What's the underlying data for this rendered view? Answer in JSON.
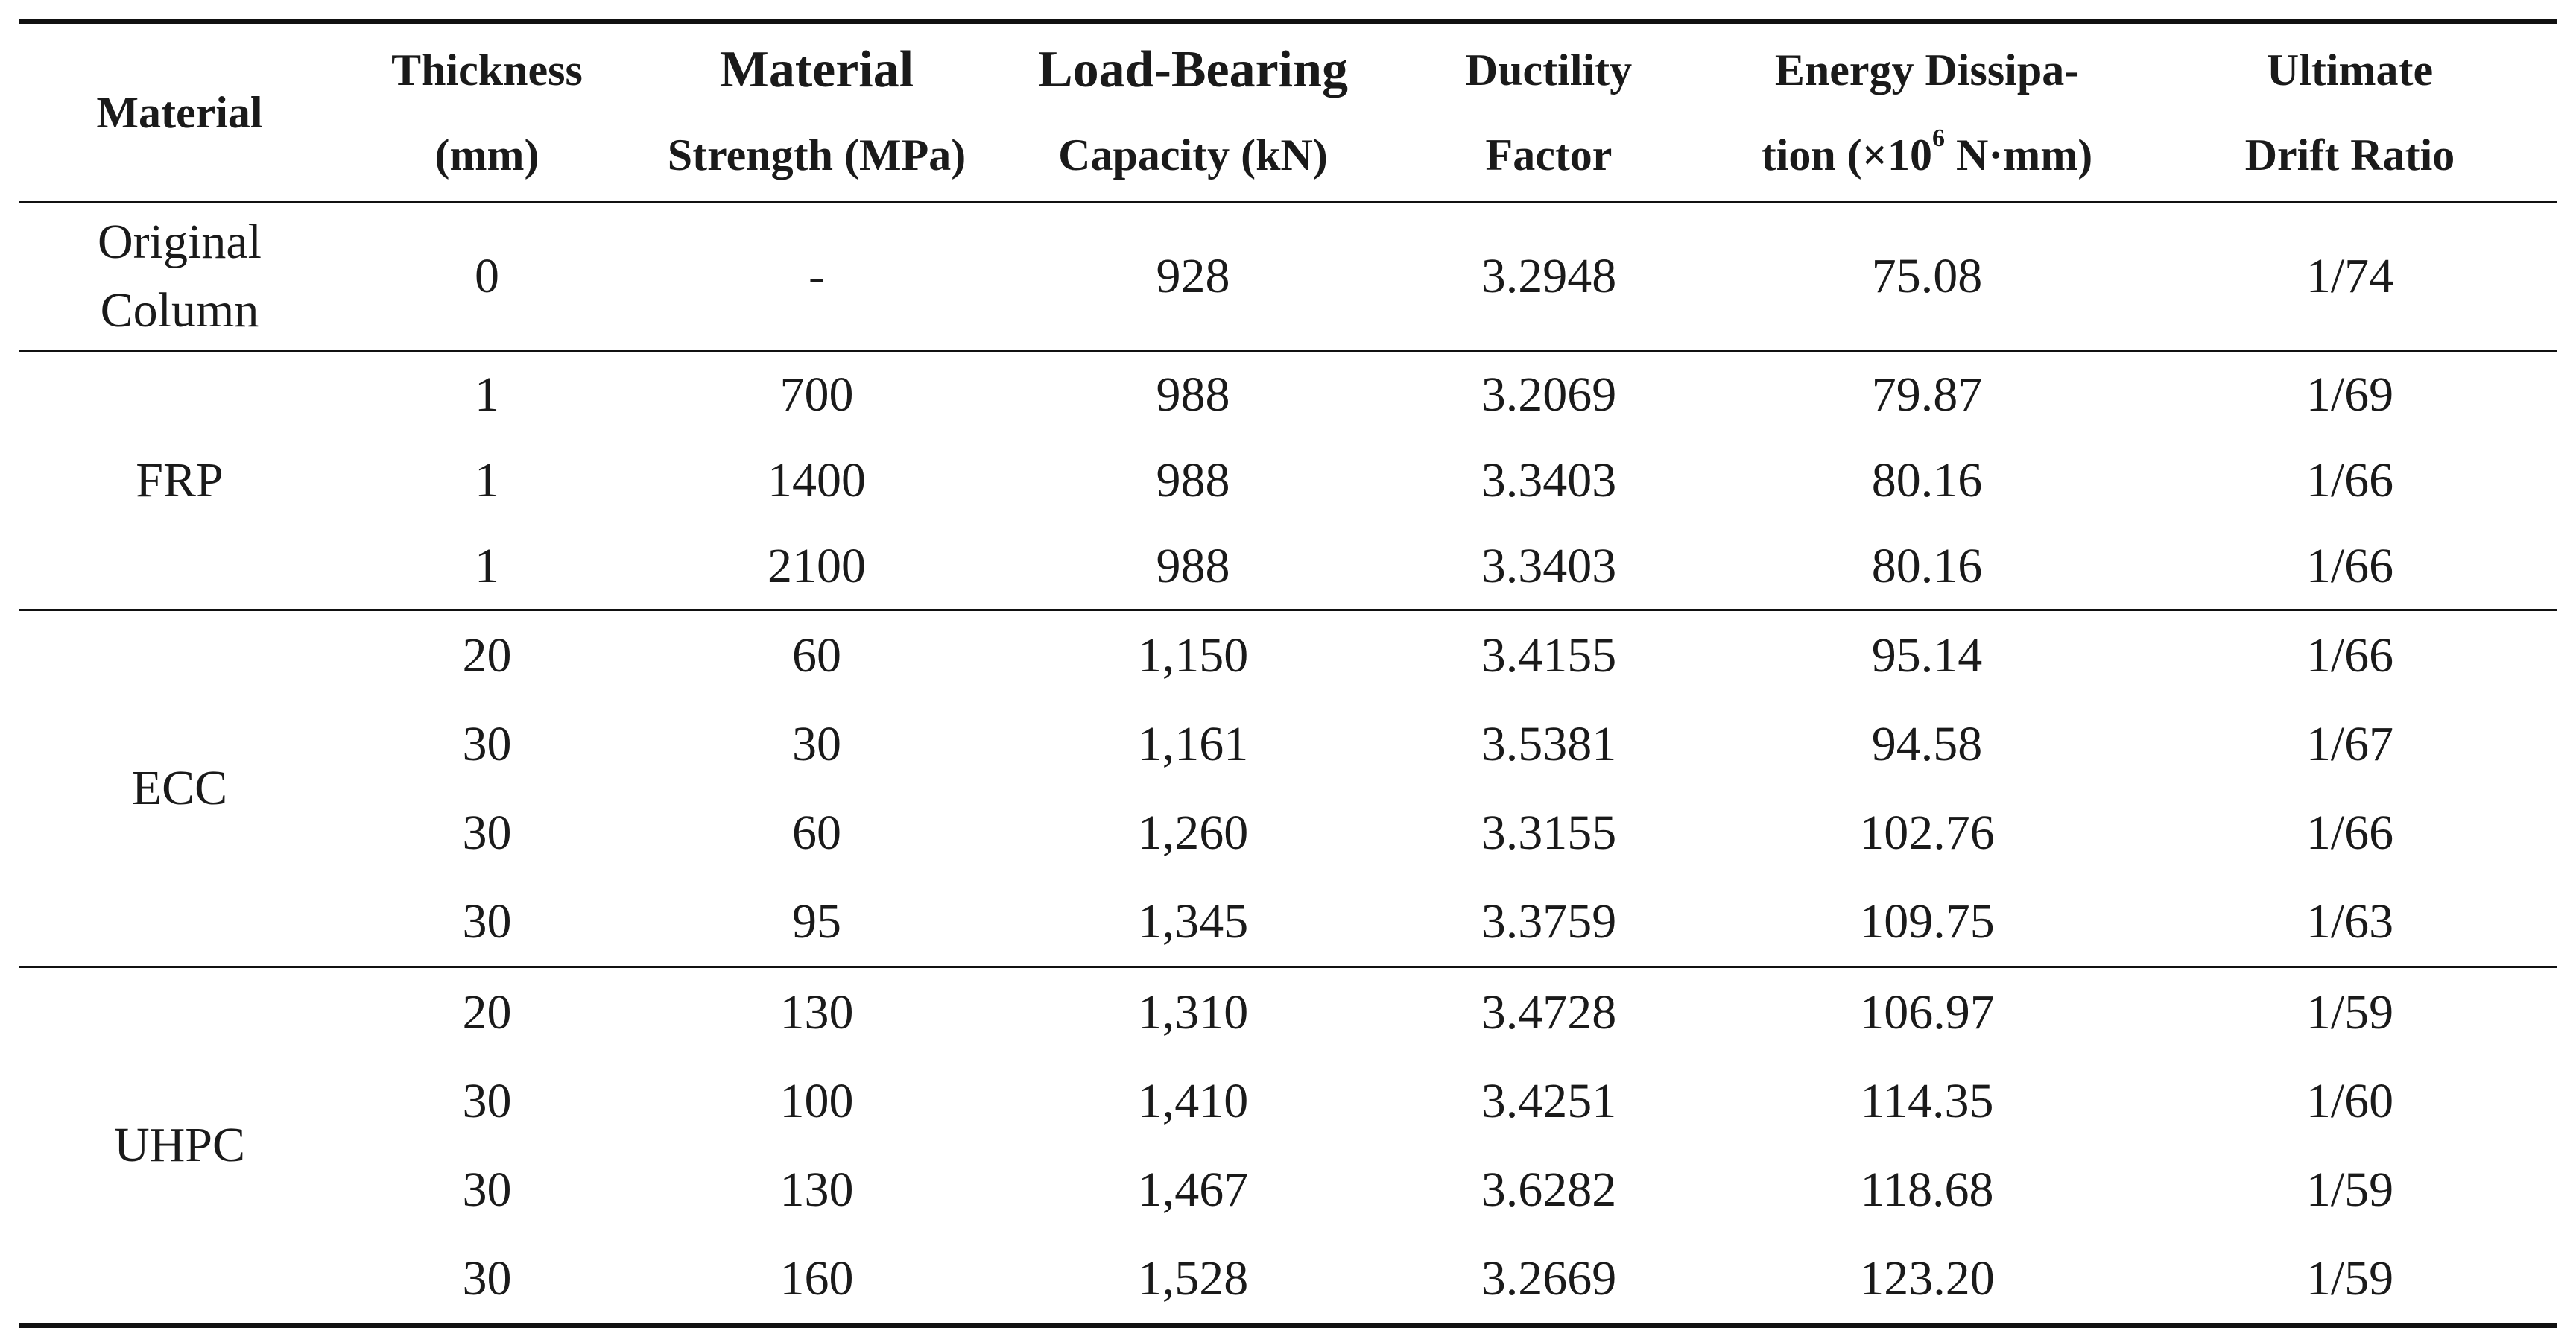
{
  "table": {
    "headers": [
      {
        "lines": [
          "Material"
        ]
      },
      {
        "lines": [
          "Thickness",
          "(mm)"
        ]
      },
      {
        "lines": [
          "Material",
          "Strength (MPa)"
        ]
      },
      {
        "lines": [
          "Load-Bearing",
          "Capacity (kN)"
        ]
      },
      {
        "lines": [
          "Ductility",
          "Factor"
        ]
      },
      {
        "lines": [
          "Energy Dissipa-",
          "tion (×10",
          "6",
          " N·mm)"
        ]
      },
      {
        "lines": [
          "Ultimate",
          "Drift Ratio"
        ]
      }
    ],
    "groups": [
      {
        "material": [
          "Original",
          "Column"
        ],
        "rows": [
          [
            "0",
            "-",
            "928",
            "3.2948",
            "75.08",
            "1/74"
          ]
        ]
      },
      {
        "material": [
          "FRP"
        ],
        "rows": [
          [
            "1",
            "700",
            "988",
            "3.2069",
            "79.87",
            "1/69"
          ],
          [
            "1",
            "1400",
            "988",
            "3.3403",
            "80.16",
            "1/66"
          ],
          [
            "1",
            "2100",
            "988",
            "3.3403",
            "80.16",
            "1/66"
          ]
        ]
      },
      {
        "material": [
          "ECC"
        ],
        "rows": [
          [
            "20",
            "60",
            "1,150",
            "3.4155",
            "95.14",
            "1/66"
          ],
          [
            "30",
            "30",
            "1,161",
            "3.5381",
            "94.58",
            "1/67"
          ],
          [
            "30",
            "60",
            "1,260",
            "3.3155",
            "102.76",
            "1/66"
          ],
          [
            "30",
            "95",
            "1,345",
            "3.3759",
            "109.75",
            "1/63"
          ]
        ]
      },
      {
        "material": [
          "UHPC"
        ],
        "rows": [
          [
            "20",
            "130",
            "1,310",
            "3.4728",
            "106.97",
            "1/59"
          ],
          [
            "30",
            "100",
            "1,410",
            "3.4251",
            "114.35",
            "1/60"
          ],
          [
            "30",
            "130",
            "1,467",
            "3.6282",
            "118.68",
            "1/59"
          ],
          [
            "30",
            "160",
            "1,528",
            "3.2669",
            "123.20",
            "1/59"
          ]
        ]
      }
    ]
  }
}
